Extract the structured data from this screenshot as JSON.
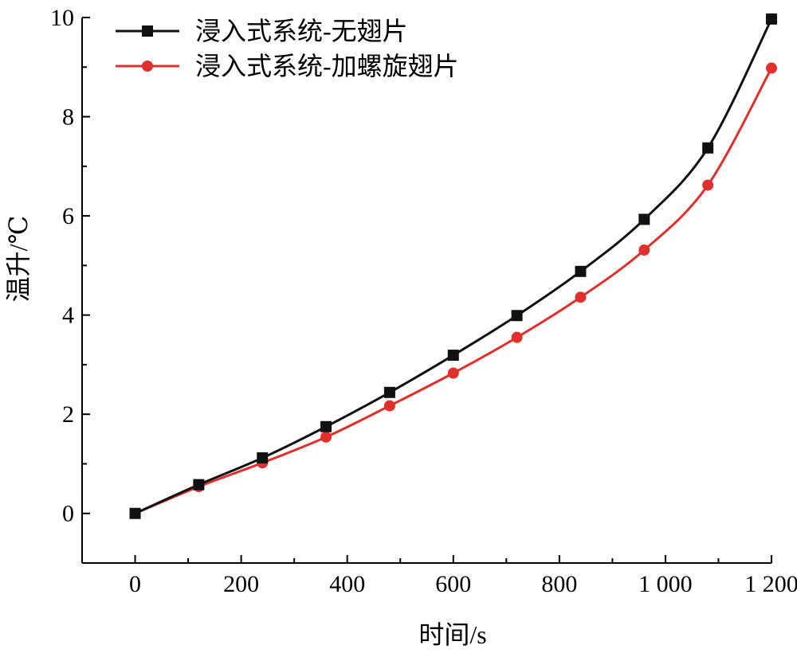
{
  "chart_data": {
    "type": "line",
    "title": "",
    "xlabel": "时间/s",
    "ylabel": "温升/℃",
    "xlim": [
      -100,
      1200
    ],
    "ylim": [
      -1,
      10
    ],
    "x_ticks": [
      0,
      200,
      400,
      600,
      800,
      1000,
      1200
    ],
    "x_tick_labels": [
      "0",
      "200",
      "400",
      "600",
      "800",
      "1 000",
      "1 200"
    ],
    "y_ticks": [
      0,
      2,
      4,
      6,
      8,
      10
    ],
    "y_tick_labels": [
      "0",
      "2",
      "4",
      "6",
      "8",
      "10"
    ],
    "grid": false,
    "legend_position": "top-left",
    "x": [
      0,
      120,
      240,
      360,
      480,
      600,
      720,
      840,
      960,
      1080,
      1200
    ],
    "series": [
      {
        "name": "浸入式系统-无翅片",
        "color": "#111111",
        "marker": "square",
        "values": [
          0,
          0.58,
          1.12,
          1.75,
          2.44,
          3.19,
          3.99,
          4.88,
          5.93,
          7.37,
          9.97
        ]
      },
      {
        "name": "浸入式系统-加螺旋翅片",
        "color": "#e0302e",
        "marker": "circle",
        "values": [
          0,
          0.54,
          1.02,
          1.54,
          2.17,
          2.83,
          3.55,
          4.36,
          5.31,
          6.62,
          8.98
        ]
      }
    ]
  }
}
